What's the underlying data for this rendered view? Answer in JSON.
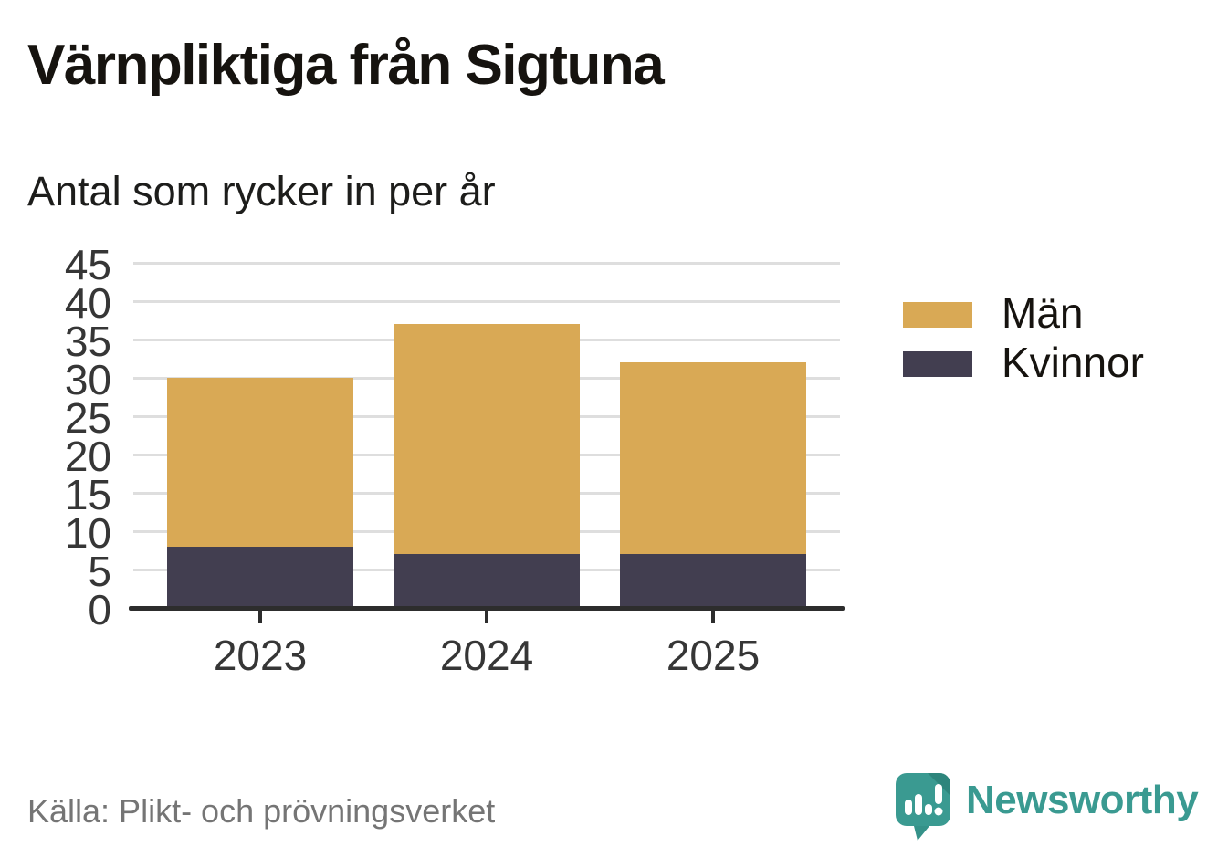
{
  "title": "Värnpliktiga från Sigtuna",
  "subtitle": "Antal som rycker in per år",
  "source": "Källa: Plikt- och prövningsverket",
  "brand": {
    "name": "Newsworthy",
    "icon": "speech-bubble-bar-chart-icon",
    "color": "#3a9a91"
  },
  "colors": {
    "men": "#d9a955",
    "women": "#423e50",
    "grid": "#dedede",
    "axis": "#2d2d2d",
    "tick_text": "#363636",
    "source_text": "#757575"
  },
  "chart_data": {
    "type": "bar",
    "stacked": true,
    "title": "Värnpliktiga från Sigtuna",
    "subtitle": "Antal som rycker in per år",
    "categories": [
      "2023",
      "2024",
      "2025"
    ],
    "series": [
      {
        "name": "Kvinnor",
        "values": [
          8,
          7,
          7
        ],
        "color": "#423e50"
      },
      {
        "name": "Män",
        "values": [
          22,
          30,
          25
        ],
        "color": "#d9a955"
      }
    ],
    "totals": [
      30,
      37,
      32
    ],
    "ylim": [
      0,
      45
    ],
    "yticks": [
      0,
      5,
      10,
      15,
      20,
      25,
      30,
      35,
      40,
      45
    ],
    "xlabel": "",
    "ylabel": "",
    "grid": true,
    "legend_position": "right",
    "legend": [
      {
        "label": "Män",
        "color": "#d9a955"
      },
      {
        "label": "Kvinnor",
        "color": "#423e50"
      }
    ]
  }
}
